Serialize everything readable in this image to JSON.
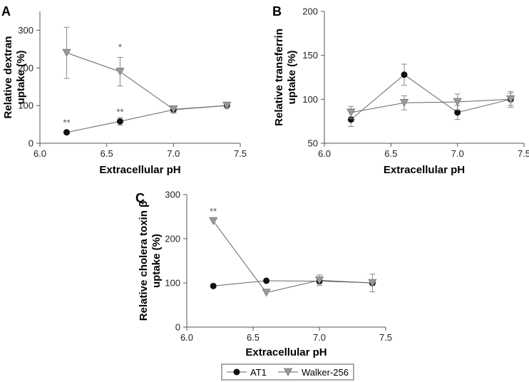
{
  "legend": {
    "series_ids": [
      "at1",
      "walker256"
    ],
    "labels": {
      "at1": "AT1",
      "walker256": "Walker-256"
    }
  },
  "colors": {
    "at1": "#111111",
    "walker256": "#999999",
    "line": "#666666",
    "axis": "#555555"
  },
  "chart_data": [
    {
      "panel": "A",
      "type": "line",
      "xlabel": "Extracellular pH",
      "ylabel_lines": [
        "Relative dextran",
        "uptake (%)"
      ],
      "xlim": [
        6.0,
        7.5
      ],
      "xticks": [
        6.0,
        6.5,
        7.0,
        7.5
      ],
      "xtick_labels": [
        "6.0",
        "6.5",
        "7.0",
        "7.5"
      ],
      "ylim": [
        0,
        350
      ],
      "yticks": [
        0,
        100,
        200,
        300
      ],
      "ytick_labels": [
        "0",
        "100",
        "200",
        "300"
      ],
      "series": [
        {
          "name": "AT1",
          "id": "at1",
          "marker": "circle",
          "x": [
            6.2,
            6.6,
            7.0,
            7.4
          ],
          "y": [
            29,
            58,
            89,
            100
          ],
          "err": [
            0,
            10,
            9,
            5
          ]
        },
        {
          "name": "Walker-256",
          "id": "walker256",
          "marker": "triangle-down",
          "x": [
            6.2,
            6.6,
            7.0,
            7.4
          ],
          "y": [
            240,
            190,
            90,
            100
          ],
          "err": [
            68,
            38,
            8,
            4
          ]
        }
      ],
      "annotations": [
        {
          "text": "**",
          "x": 6.2,
          "y": 29,
          "series": "at1"
        },
        {
          "text": "**",
          "x": 6.6,
          "y": 58,
          "series": "at1"
        },
        {
          "text": "*",
          "x": 6.6,
          "y": 230,
          "series": "walker256"
        }
      ]
    },
    {
      "panel": "B",
      "type": "line",
      "xlabel": "Extracellular pH",
      "ylabel_lines": [
        "Relative transferrin",
        "uptake (%)"
      ],
      "xlim": [
        6.0,
        7.5
      ],
      "xticks": [
        6.0,
        6.5,
        7.0,
        7.5
      ],
      "xtick_labels": [
        "6.0",
        "6.5",
        "7.0",
        "7.5"
      ],
      "ylim": [
        50,
        200
      ],
      "yticks": [
        50,
        100,
        150,
        200
      ],
      "ytick_labels": [
        "50",
        "100",
        "150",
        "200"
      ],
      "series": [
        {
          "name": "AT1",
          "id": "at1",
          "marker": "circle",
          "x": [
            6.2,
            6.6,
            7.0,
            7.4
          ],
          "y": [
            77,
            128,
            85,
            100
          ],
          "err": [
            8,
            12,
            8,
            7
          ]
        },
        {
          "name": "Walker-256",
          "id": "walker256",
          "marker": "triangle-down",
          "x": [
            6.2,
            6.6,
            7.0,
            7.4
          ],
          "y": [
            85,
            96,
            97,
            100
          ],
          "err": [
            7,
            8,
            9,
            9
          ]
        }
      ],
      "annotations": []
    },
    {
      "panel": "C",
      "type": "line",
      "xlabel": "Extracellular pH",
      "ylabel_lines": [
        "Relative cholera toxin β",
        "uptake (%)"
      ],
      "xlim": [
        6.0,
        7.5
      ],
      "xticks": [
        6.0,
        6.5,
        7.0,
        7.5
      ],
      "xtick_labels": [
        "6.0",
        "6.5",
        "7.0",
        "7.5"
      ],
      "ylim": [
        0,
        300
      ],
      "yticks": [
        0,
        100,
        200,
        300
      ],
      "ytick_labels": [
        "0",
        "100",
        "200",
        "300"
      ],
      "series": [
        {
          "name": "AT1",
          "id": "at1",
          "marker": "circle",
          "x": [
            6.2,
            6.6,
            7.0,
            7.4
          ],
          "y": [
            93,
            105,
            104,
            100
          ],
          "err": [
            0,
            0,
            6,
            6
          ]
        },
        {
          "name": "Walker-256",
          "id": "walker256",
          "marker": "triangle-down",
          "x": [
            6.2,
            6.6,
            7.0,
            7.4
          ],
          "y": [
            240,
            78,
            106,
            100
          ],
          "err": [
            0,
            0,
            12,
            20
          ]
        }
      ],
      "annotations": [
        {
          "text": "**",
          "x": 6.2,
          "y": 240,
          "series": "walker256"
        }
      ]
    }
  ]
}
